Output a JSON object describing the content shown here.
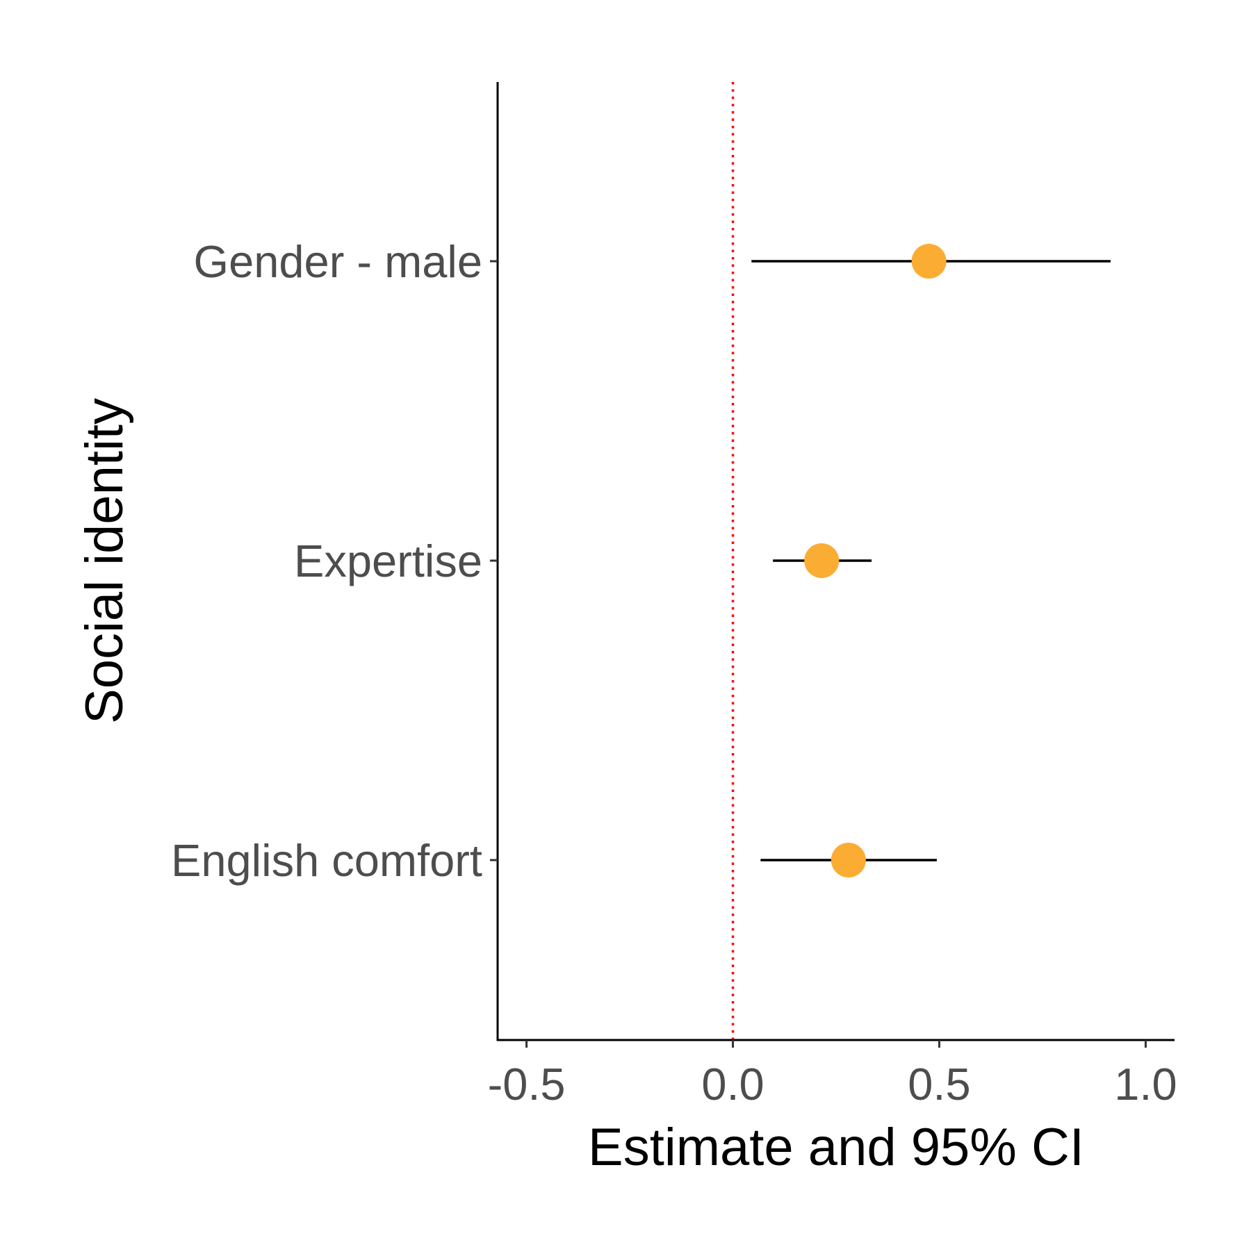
{
  "chart_data": {
    "type": "scatter",
    "subtype": "forest-plot",
    "title": "",
    "xlabel": "Estimate and 95% CI",
    "ylabel": "Social identity",
    "xlim": [
      -0.57,
      1.07
    ],
    "x_ticks": [
      -0.5,
      0.0,
      0.5,
      1.0
    ],
    "x_tick_labels": [
      "-0.5",
      "0.0",
      "0.5",
      "1.0"
    ],
    "categories": [
      "Gender - male",
      "Expertise",
      "English comfort"
    ],
    "estimates": [
      0.475,
      0.215,
      0.28
    ],
    "ci_lower": [
      0.045,
      0.097,
      0.067
    ],
    "ci_upper": [
      0.915,
      0.336,
      0.494
    ],
    "reference_line": {
      "x": 0.0,
      "style": "dotted",
      "color": "#ff0000"
    },
    "point_color": "#fbac32",
    "errorbar_color": "#000000",
    "grid": false,
    "legend": "none"
  }
}
